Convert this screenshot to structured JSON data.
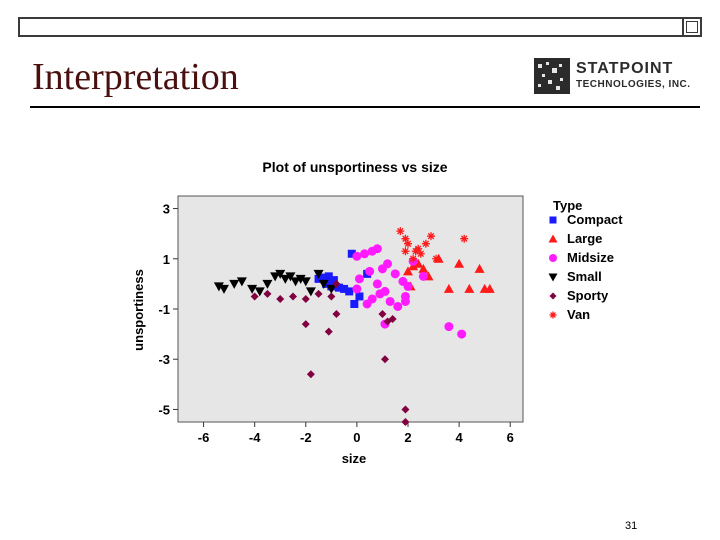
{
  "slide": {
    "title": "Interpretation",
    "page_number": "31",
    "logo": {
      "line1": "STATPOINT",
      "line2": "TECHNOLOGIES, INC."
    }
  },
  "chart_data": {
    "type": "scatter",
    "title": "Plot of unsportiness vs size",
    "xlabel": "size",
    "ylabel": "unsportiness",
    "xlim": [
      -7,
      6.5
    ],
    "ylim": [
      -5.5,
      3.5
    ],
    "xticks": [
      -6,
      -4,
      -2,
      0,
      2,
      4,
      6
    ],
    "yticks": [
      3,
      1,
      -1,
      -3,
      -5
    ],
    "legend_title": "Type",
    "legend_position": "right",
    "series": [
      {
        "name": "Compact",
        "color": "#1a1aff",
        "marker": "square",
        "x": [
          -1.5,
          -1.3,
          -1.1,
          -0.9,
          -1.2,
          -1.0,
          -0.7,
          -0.5,
          0.4,
          -0.2,
          -0.1,
          0.1,
          -0.3
        ],
        "y": [
          0.2,
          0.25,
          0.3,
          0.15,
          0.0,
          -0.1,
          -0.15,
          -0.2,
          0.4,
          1.2,
          -0.8,
          -0.5,
          -0.3
        ]
      },
      {
        "name": "Large",
        "color": "#ff1a1a",
        "marker": "triangle",
        "x": [
          2.0,
          2.2,
          2.4,
          2.6,
          2.8,
          3.2,
          3.6,
          4.0,
          4.4,
          4.8,
          5.0,
          5.2,
          2.1
        ],
        "y": [
          0.5,
          0.7,
          0.8,
          0.6,
          0.3,
          1.0,
          -0.2,
          0.8,
          -0.2,
          0.6,
          -0.2,
          -0.2,
          -0.1
        ]
      },
      {
        "name": "Midsize",
        "color": "#ff1aff",
        "marker": "circle",
        "x": [
          0.0,
          0.3,
          0.6,
          0.8,
          1.0,
          1.2,
          1.5,
          1.8,
          2.0,
          0.1,
          0.5,
          0.8,
          1.1,
          1.9,
          2.2,
          2.6,
          0.6,
          0.9,
          1.3,
          3.6,
          4.1,
          1.1,
          0.0,
          0.4,
          1.6,
          1.9
        ],
        "y": [
          1.1,
          1.2,
          1.3,
          1.4,
          0.6,
          0.8,
          0.4,
          0.1,
          -0.1,
          0.2,
          0.5,
          0.0,
          -0.3,
          -0.5,
          0.9,
          0.3,
          -0.6,
          -0.4,
          -0.7,
          -1.7,
          -2.0,
          -1.6,
          -0.2,
          -0.8,
          -0.9,
          -0.7
        ]
      },
      {
        "name": "Small",
        "color": "#000000",
        "marker": "triangle-down",
        "x": [
          -5.4,
          -5.2,
          -4.8,
          -4.5,
          -4.1,
          -3.8,
          -3.5,
          -3.2,
          -3.0,
          -2.8,
          -2.6,
          -2.4,
          -2.2,
          -2.0,
          -1.8,
          -1.5,
          -1.3,
          -1.0
        ],
        "y": [
          -0.1,
          -0.2,
          0.0,
          0.1,
          -0.2,
          -0.3,
          0.0,
          0.3,
          0.4,
          0.2,
          0.3,
          0.1,
          0.2,
          0.1,
          -0.3,
          0.4,
          0.0,
          -0.2
        ]
      },
      {
        "name": "Sporty",
        "color": "#800040",
        "marker": "diamond",
        "x": [
          -4.0,
          -3.5,
          -3.0,
          -2.5,
          -2.0,
          -1.5,
          -1.0,
          -0.8,
          -2.0,
          -1.1,
          -0.8,
          1.0,
          1.2,
          1.4,
          1.9,
          -1.8,
          1.1,
          1.9
        ],
        "y": [
          -0.5,
          -0.4,
          -0.6,
          -0.5,
          -0.6,
          -0.4,
          -0.5,
          -1.2,
          -1.6,
          -1.9,
          0.0,
          -1.2,
          -1.5,
          -1.4,
          -5.5,
          -3.6,
          -3.0,
          -5.0
        ]
      },
      {
        "name": "Van",
        "color": "#ff1a1a",
        "marker": "asterisk",
        "x": [
          1.7,
          1.9,
          2.0,
          2.3,
          2.5,
          2.7,
          2.9,
          3.1,
          4.2,
          2.4,
          1.9,
          2.2
        ],
        "y": [
          2.1,
          1.8,
          1.6,
          1.3,
          1.2,
          1.6,
          1.9,
          1.0,
          1.8,
          1.4,
          1.3,
          1.0
        ]
      }
    ]
  }
}
